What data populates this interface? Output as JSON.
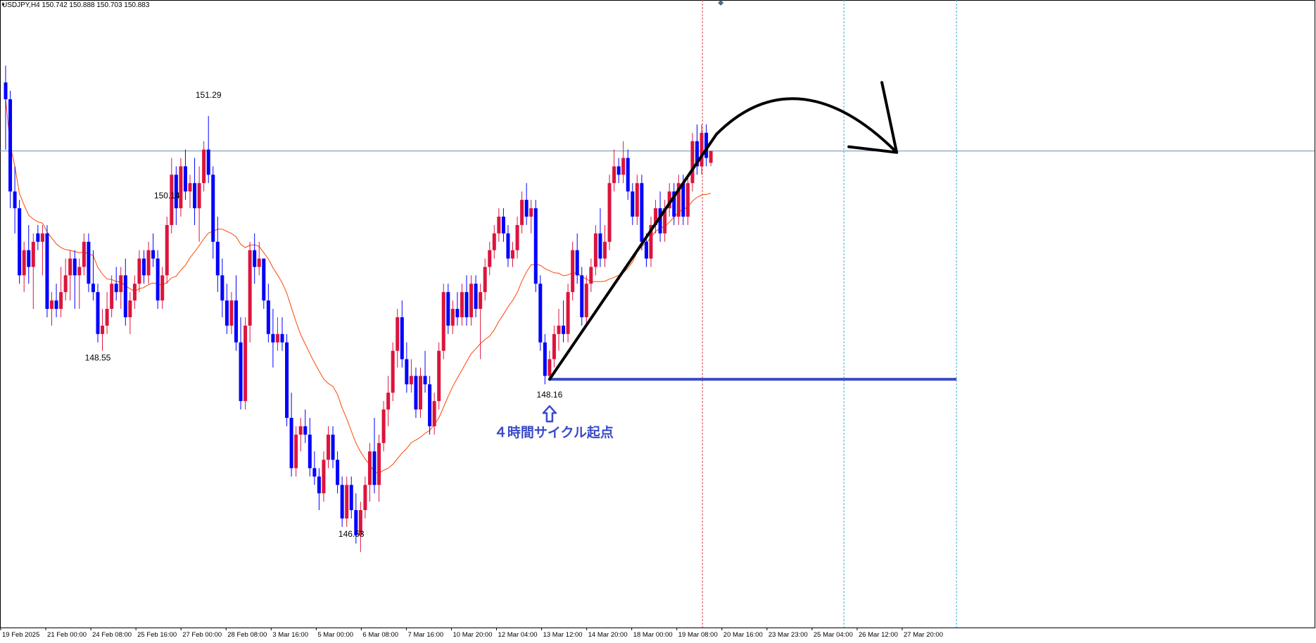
{
  "window": {
    "title": "USDJPY,H4 150.742 150.888 150.703 150.883"
  },
  "colors": {
    "bull": "#dc143c",
    "bear": "#0000ff",
    "doji": "#00c000",
    "ma": "#ff4500",
    "price_line": "#6a8bb5",
    "trend_line": "#000000",
    "support_line": "#3b4bc8",
    "annotation": "#3b4bc8",
    "now_line": "#e0404a",
    "future_line": "#3aaee0"
  },
  "annotations": {
    "high_1": "151.29",
    "low_1": "148.55",
    "low_2": "146.53",
    "high_2": "150.14",
    "low_3": "148.16",
    "cycle_label": "４時間サイクル起点"
  },
  "chart_data": {
    "type": "candlestick",
    "symbol": "USDJPY",
    "timeframe": "H4",
    "ohlc_current": {
      "open": 150.742,
      "high": 150.888,
      "low": 150.703,
      "close": 150.883
    },
    "x_tick_labels": [
      "19 Feb 2025",
      "21 Feb 00:00",
      "24 Feb 08:00",
      "25 Feb 16:00",
      "27 Feb 00:00",
      "28 Feb 08:00",
      "3 Mar 16:00",
      "5 Mar 00:00",
      "6 Mar 08:00",
      "7 Mar 16:00",
      "10 Mar 20:00",
      "12 Mar 04:00",
      "13 Mar 12:00",
      "14 Mar 20:00",
      "18 Mar 00:00",
      "19 Mar 08:00",
      "20 Mar 16:00",
      "23 Mar 23:00",
      "25 Mar 04:00",
      "26 Mar 12:00",
      "27 Mar 20:00"
    ],
    "current_price": 150.883,
    "y_range": [
      145.3,
      152.6
    ],
    "labeled_levels": [
      {
        "label": "151.29",
        "value": 151.29,
        "kind": "high"
      },
      {
        "label": "148.55",
        "value": 148.55,
        "kind": "low"
      },
      {
        "label": "146.53",
        "value": 146.53,
        "kind": "low"
      },
      {
        "label": "150.14",
        "value": 150.14,
        "kind": "high"
      },
      {
        "label": "148.16",
        "value": 148.16,
        "kind": "low"
      }
    ],
    "support_level": 148.16,
    "moving_average": "single line (orange)",
    "candles": [
      {
        "o": 151.7,
        "h": 151.9,
        "l": 150.9,
        "c": 151.5
      },
      {
        "o": 151.5,
        "h": 151.6,
        "l": 150.2,
        "c": 150.4
      },
      {
        "o": 150.4,
        "h": 150.7,
        "l": 149.9,
        "c": 150.2
      },
      {
        "o": 150.2,
        "h": 150.3,
        "l": 149.3,
        "c": 149.4
      },
      {
        "o": 149.4,
        "h": 149.8,
        "l": 149.2,
        "c": 149.7
      },
      {
        "o": 149.7,
        "h": 150.0,
        "l": 149.3,
        "c": 149.5
      },
      {
        "o": 149.5,
        "h": 149.9,
        "l": 149.0,
        "c": 149.8
      },
      {
        "o": 149.9,
        "h": 150.0,
        "l": 149.7,
        "c": 149.8
      },
      {
        "o": 149.8,
        "h": 150.0,
        "l": 149.4,
        "c": 149.9
      },
      {
        "o": 149.9,
        "h": 150.0,
        "l": 148.9,
        "c": 149.0
      },
      {
        "o": 149.0,
        "h": 149.2,
        "l": 148.8,
        "c": 149.1
      },
      {
        "o": 149.1,
        "h": 149.3,
        "l": 148.9,
        "c": 149.0
      },
      {
        "o": 149.0,
        "h": 149.5,
        "l": 148.9,
        "c": 149.2
      },
      {
        "o": 149.2,
        "h": 149.6,
        "l": 149.1,
        "c": 149.4
      },
      {
        "o": 149.4,
        "h": 149.7,
        "l": 149.1,
        "c": 149.6
      },
      {
        "o": 149.6,
        "h": 149.7,
        "l": 149.0,
        "c": 149.4
      },
      {
        "o": 149.4,
        "h": 149.6,
        "l": 149.0,
        "c": 149.5
      },
      {
        "o": 149.5,
        "h": 149.9,
        "l": 149.4,
        "c": 149.8
      },
      {
        "o": 149.8,
        "h": 149.9,
        "l": 149.2,
        "c": 149.3
      },
      {
        "o": 149.3,
        "h": 149.7,
        "l": 149.1,
        "c": 149.2
      },
      {
        "o": 149.2,
        "h": 149.3,
        "l": 148.6,
        "c": 148.7
      },
      {
        "o": 148.7,
        "h": 149.0,
        "l": 148.5,
        "c": 148.8
      },
      {
        "o": 148.8,
        "h": 149.2,
        "l": 148.7,
        "c": 149.0
      },
      {
        "o": 149.0,
        "h": 149.4,
        "l": 148.9,
        "c": 149.3
      },
      {
        "o": 149.3,
        "h": 149.5,
        "l": 149.1,
        "c": 149.2
      },
      {
        "o": 149.2,
        "h": 149.5,
        "l": 149.0,
        "c": 149.4
      },
      {
        "o": 149.4,
        "h": 149.6,
        "l": 148.8,
        "c": 148.9
      },
      {
        "o": 148.9,
        "h": 149.2,
        "l": 148.7,
        "c": 149.1
      },
      {
        "o": 149.1,
        "h": 149.4,
        "l": 149.0,
        "c": 149.3
      },
      {
        "o": 149.3,
        "h": 149.7,
        "l": 149.2,
        "c": 149.6
      },
      {
        "o": 149.6,
        "h": 149.7,
        "l": 149.3,
        "c": 149.4
      },
      {
        "o": 149.4,
        "h": 149.8,
        "l": 149.3,
        "c": 149.7
      },
      {
        "o": 149.7,
        "h": 149.9,
        "l": 149.5,
        "c": 149.6
      },
      {
        "o": 149.6,
        "h": 149.7,
        "l": 149.0,
        "c": 149.1
      },
      {
        "o": 149.1,
        "h": 149.5,
        "l": 149.0,
        "c": 149.4
      },
      {
        "o": 149.4,
        "h": 150.1,
        "l": 149.3,
        "c": 150.0
      },
      {
        "o": 150.0,
        "h": 150.8,
        "l": 149.9,
        "c": 150.6
      },
      {
        "o": 150.6,
        "h": 150.7,
        "l": 150.0,
        "c": 150.2
      },
      {
        "o": 150.2,
        "h": 150.8,
        "l": 150.1,
        "c": 150.7
      },
      {
        "o": 150.7,
        "h": 150.9,
        "l": 150.3,
        "c": 150.4
      },
      {
        "o": 150.4,
        "h": 150.6,
        "l": 150.2,
        "c": 150.5
      },
      {
        "o": 150.5,
        "h": 150.8,
        "l": 150.0,
        "c": 150.2
      },
      {
        "o": 150.2,
        "h": 150.7,
        "l": 149.8,
        "c": 150.5
      },
      {
        "o": 150.5,
        "h": 151.0,
        "l": 150.4,
        "c": 150.9
      },
      {
        "o": 150.9,
        "h": 151.3,
        "l": 150.5,
        "c": 150.6
      },
      {
        "o": 150.6,
        "h": 150.7,
        "l": 149.6,
        "c": 149.8
      },
      {
        "o": 149.8,
        "h": 150.1,
        "l": 149.2,
        "c": 149.4
      },
      {
        "o": 149.4,
        "h": 149.6,
        "l": 148.9,
        "c": 149.1
      },
      {
        "o": 149.1,
        "h": 149.3,
        "l": 148.7,
        "c": 148.8
      },
      {
        "o": 148.8,
        "h": 149.2,
        "l": 148.7,
        "c": 149.1
      },
      {
        "o": 149.1,
        "h": 149.4,
        "l": 148.5,
        "c": 148.6
      },
      {
        "o": 148.6,
        "h": 148.9,
        "l": 147.8,
        "c": 147.9
      },
      {
        "o": 147.9,
        "h": 148.9,
        "l": 147.8,
        "c": 148.8
      },
      {
        "o": 148.8,
        "h": 149.8,
        "l": 148.6,
        "c": 149.7
      },
      {
        "o": 149.7,
        "h": 149.9,
        "l": 149.3,
        "c": 149.5
      },
      {
        "o": 149.5,
        "h": 149.8,
        "l": 149.4,
        "c": 149.6
      },
      {
        "o": 149.6,
        "h": 149.6,
        "l": 149.0,
        "c": 149.1
      },
      {
        "o": 149.1,
        "h": 149.3,
        "l": 148.6,
        "c": 148.7
      },
      {
        "o": 148.7,
        "h": 149.0,
        "l": 148.3,
        "c": 148.6
      },
      {
        "o": 148.6,
        "h": 148.9,
        "l": 148.5,
        "c": 148.7
      },
      {
        "o": 148.7,
        "h": 148.9,
        "l": 148.5,
        "c": 148.6
      },
      {
        "o": 148.6,
        "h": 148.7,
        "l": 147.6,
        "c": 147.7
      },
      {
        "o": 147.7,
        "h": 148.0,
        "l": 147.0,
        "c": 147.1
      },
      {
        "o": 147.1,
        "h": 147.6,
        "l": 147.0,
        "c": 147.5
      },
      {
        "o": 147.5,
        "h": 147.7,
        "l": 147.3,
        "c": 147.6
      },
      {
        "o": 147.6,
        "h": 147.8,
        "l": 147.4,
        "c": 147.5
      },
      {
        "o": 147.5,
        "h": 147.7,
        "l": 147.0,
        "c": 147.1
      },
      {
        "o": 147.1,
        "h": 147.3,
        "l": 146.9,
        "c": 147.0
      },
      {
        "o": 147.0,
        "h": 147.1,
        "l": 146.6,
        "c": 146.8
      },
      {
        "o": 146.8,
        "h": 147.3,
        "l": 146.7,
        "c": 147.2
      },
      {
        "o": 147.2,
        "h": 147.6,
        "l": 147.1,
        "c": 147.5
      },
      {
        "o": 147.5,
        "h": 147.6,
        "l": 147.1,
        "c": 147.2
      },
      {
        "o": 147.2,
        "h": 147.3,
        "l": 146.8,
        "c": 146.9
      },
      {
        "o": 146.9,
        "h": 147.0,
        "l": 146.4,
        "c": 146.5
      },
      {
        "o": 146.5,
        "h": 147.0,
        "l": 146.4,
        "c": 146.9
      },
      {
        "o": 146.9,
        "h": 147.0,
        "l": 146.5,
        "c": 146.6
      },
      {
        "o": 146.6,
        "h": 146.8,
        "l": 146.2,
        "c": 146.3
      },
      {
        "o": 146.3,
        "h": 146.7,
        "l": 146.1,
        "c": 146.6
      },
      {
        "o": 146.6,
        "h": 147.0,
        "l": 146.5,
        "c": 146.9
      },
      {
        "o": 146.9,
        "h": 147.4,
        "l": 146.7,
        "c": 147.3
      },
      {
        "o": 147.3,
        "h": 147.7,
        "l": 146.8,
        "c": 146.9
      },
      {
        "o": 146.9,
        "h": 147.5,
        "l": 146.7,
        "c": 147.4
      },
      {
        "o": 147.4,
        "h": 147.9,
        "l": 147.3,
        "c": 147.8
      },
      {
        "o": 147.8,
        "h": 148.2,
        "l": 147.6,
        "c": 148.0
      },
      {
        "o": 148.0,
        "h": 148.6,
        "l": 147.9,
        "c": 148.5
      },
      {
        "o": 148.5,
        "h": 149.0,
        "l": 148.3,
        "c": 148.9
      },
      {
        "o": 148.9,
        "h": 149.1,
        "l": 148.3,
        "c": 148.4
      },
      {
        "o": 148.4,
        "h": 148.6,
        "l": 148.0,
        "c": 148.1
      },
      {
        "o": 148.1,
        "h": 148.4,
        "l": 148.0,
        "c": 148.2
      },
      {
        "o": 148.2,
        "h": 148.3,
        "l": 147.7,
        "c": 147.8
      },
      {
        "o": 147.8,
        "h": 148.3,
        "l": 147.7,
        "c": 148.2
      },
      {
        "o": 148.2,
        "h": 148.5,
        "l": 148.0,
        "c": 148.1
      },
      {
        "o": 148.1,
        "h": 148.2,
        "l": 147.5,
        "c": 147.6
      },
      {
        "o": 147.6,
        "h": 148.0,
        "l": 147.5,
        "c": 147.9
      },
      {
        "o": 147.9,
        "h": 148.6,
        "l": 147.8,
        "c": 148.5
      },
      {
        "o": 148.5,
        "h": 149.3,
        "l": 148.4,
        "c": 149.2
      },
      {
        "o": 149.2,
        "h": 149.3,
        "l": 148.7,
        "c": 148.8
      },
      {
        "o": 148.8,
        "h": 149.1,
        "l": 148.7,
        "c": 149.0
      },
      {
        "o": 149.0,
        "h": 149.2,
        "l": 148.8,
        "c": 148.9
      },
      {
        "o": 148.9,
        "h": 149.3,
        "l": 148.8,
        "c": 149.2
      },
      {
        "o": 149.2,
        "h": 149.4,
        "l": 148.8,
        "c": 148.9
      },
      {
        "o": 148.9,
        "h": 149.4,
        "l": 148.8,
        "c": 149.3
      },
      {
        "o": 149.3,
        "h": 149.4,
        "l": 148.9,
        "c": 149.0
      },
      {
        "o": 149.0,
        "h": 149.3,
        "l": 148.4,
        "c": 149.2
      },
      {
        "o": 149.2,
        "h": 149.6,
        "l": 149.1,
        "c": 149.5
      },
      {
        "o": 149.5,
        "h": 149.8,
        "l": 149.4,
        "c": 149.7
      },
      {
        "o": 149.7,
        "h": 150.0,
        "l": 149.6,
        "c": 149.9
      },
      {
        "o": 149.9,
        "h": 150.2,
        "l": 149.8,
        "c": 150.1
      },
      {
        "o": 150.1,
        "h": 150.2,
        "l": 149.8,
        "c": 149.9
      },
      {
        "o": 149.9,
        "h": 150.0,
        "l": 149.5,
        "c": 149.6
      },
      {
        "o": 149.6,
        "h": 149.8,
        "l": 149.5,
        "c": 149.7
      },
      {
        "o": 149.7,
        "h": 150.1,
        "l": 149.6,
        "c": 150.0
      },
      {
        "o": 150.0,
        "h": 150.4,
        "l": 149.9,
        "c": 150.3
      },
      {
        "o": 150.3,
        "h": 150.5,
        "l": 150.0,
        "c": 150.1
      },
      {
        "o": 150.1,
        "h": 150.3,
        "l": 149.9,
        "c": 150.2
      },
      {
        "o": 150.2,
        "h": 150.3,
        "l": 149.2,
        "c": 149.3
      },
      {
        "o": 149.3,
        "h": 149.4,
        "l": 148.5,
        "c": 148.6
      },
      {
        "o": 148.6,
        "h": 148.7,
        "l": 148.1,
        "c": 148.2
      },
      {
        "o": 148.2,
        "h": 148.5,
        "l": 148.16,
        "c": 148.4
      },
      {
        "o": 148.4,
        "h": 148.8,
        "l": 148.3,
        "c": 148.7
      },
      {
        "o": 148.7,
        "h": 149.0,
        "l": 148.5,
        "c": 148.8
      },
      {
        "o": 148.8,
        "h": 149.1,
        "l": 148.6,
        "c": 148.7
      },
      {
        "o": 148.7,
        "h": 149.3,
        "l": 148.6,
        "c": 149.2
      },
      {
        "o": 149.2,
        "h": 149.8,
        "l": 149.1,
        "c": 149.7
      },
      {
        "o": 149.7,
        "h": 149.9,
        "l": 149.3,
        "c": 149.4
      },
      {
        "o": 149.4,
        "h": 149.5,
        "l": 148.8,
        "c": 148.9
      },
      {
        "o": 148.9,
        "h": 149.4,
        "l": 148.8,
        "c": 149.3
      },
      {
        "o": 149.3,
        "h": 149.6,
        "l": 149.2,
        "c": 149.5
      },
      {
        "o": 149.5,
        "h": 150.0,
        "l": 149.4,
        "c": 149.9
      },
      {
        "o": 149.9,
        "h": 150.2,
        "l": 149.5,
        "c": 149.6
      },
      {
        "o": 149.6,
        "h": 150.0,
        "l": 149.5,
        "c": 149.8
      },
      {
        "o": 149.8,
        "h": 150.6,
        "l": 149.7,
        "c": 150.5
      },
      {
        "o": 150.5,
        "h": 150.9,
        "l": 150.4,
        "c": 150.7
      },
      {
        "o": 150.7,
        "h": 150.8,
        "l": 150.5,
        "c": 150.6
      },
      {
        "o": 150.6,
        "h": 151.0,
        "l": 150.5,
        "c": 150.8
      },
      {
        "o": 150.8,
        "h": 150.9,
        "l": 150.3,
        "c": 150.4
      },
      {
        "o": 150.4,
        "h": 150.5,
        "l": 150.0,
        "c": 150.1
      },
      {
        "o": 150.1,
        "h": 150.6,
        "l": 150.0,
        "c": 150.5
      },
      {
        "o": 150.5,
        "h": 150.6,
        "l": 149.7,
        "c": 149.8
      },
      {
        "o": 149.8,
        "h": 149.9,
        "l": 149.5,
        "c": 149.6
      },
      {
        "o": 149.6,
        "h": 150.1,
        "l": 149.5,
        "c": 150.0
      },
      {
        "o": 150.0,
        "h": 150.3,
        "l": 149.9,
        "c": 150.2
      },
      {
        "o": 150.2,
        "h": 150.4,
        "l": 149.8,
        "c": 149.9
      },
      {
        "o": 149.9,
        "h": 150.3,
        "l": 149.8,
        "c": 150.2
      },
      {
        "o": 150.2,
        "h": 150.5,
        "l": 150.1,
        "c": 150.4
      },
      {
        "o": 150.4,
        "h": 150.5,
        "l": 150.0,
        "c": 150.1
      },
      {
        "o": 150.1,
        "h": 150.6,
        "l": 150.0,
        "c": 150.5
      },
      {
        "o": 150.5,
        "h": 150.6,
        "l": 150.0,
        "c": 150.1
      },
      {
        "o": 150.1,
        "h": 150.6,
        "l": 150.0,
        "c": 150.5
      },
      {
        "o": 150.5,
        "h": 151.1,
        "l": 150.4,
        "c": 151.0
      },
      {
        "o": 151.0,
        "h": 151.2,
        "l": 150.6,
        "c": 150.7
      },
      {
        "o": 150.7,
        "h": 151.2,
        "l": 150.6,
        "c": 151.1
      },
      {
        "o": 151.1,
        "h": 151.2,
        "l": 150.7,
        "c": 150.8
      },
      {
        "o": 150.742,
        "h": 150.888,
        "l": 150.703,
        "c": 150.883
      }
    ]
  }
}
